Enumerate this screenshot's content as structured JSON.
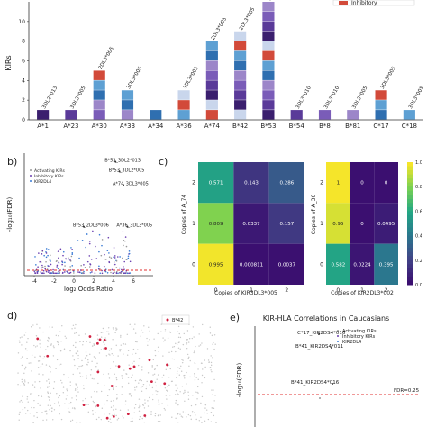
{
  "panel_labels": {
    "b": "b)",
    "c": "c)",
    "d": "d)",
    "e": "e)"
  },
  "chart_data": [
    {
      "id": "a",
      "type": "bar",
      "ylabel": "KIRs",
      "ylim": [
        0,
        12
      ],
      "yticks": [
        0,
        2,
        4,
        6,
        8,
        10
      ],
      "categories": [
        "A*1",
        "A*23",
        "A*30",
        "A*33",
        "A*34",
        "A*36",
        "A*74",
        "B*42",
        "B*53",
        "B*54",
        "B*8",
        "B*81",
        "C*17",
        "C*18"
      ],
      "values": [
        1,
        1,
        5,
        3,
        1,
        3,
        8,
        9,
        12,
        1,
        1,
        1,
        3,
        1
      ],
      "legend_text": "Inhibitory",
      "bar_labels": {
        "A*1": "3DL2*013",
        "A*23": "3DL3*005",
        "A*30": "2DL3*005",
        "A*33": "3DL3*005",
        "A*36": "3DL3*005",
        "A*74": "2DL3*005",
        "B*42": "2DL3*005",
        "B*53": "2DL3*005",
        "B*54": "3DL3*010",
        "B*8": "3DL3*010",
        "B*81": "3DL3*005",
        "C*17": "3DL3*005",
        "C*18": "3DL3*005"
      }
    },
    {
      "id": "b",
      "type": "scatter",
      "xlabel": "log₂ Odds Ratio",
      "ylabel": "-log₁₀(FDR)",
      "xlim": [
        -5,
        8
      ],
      "xticks": [
        -4,
        -2,
        0,
        2,
        4,
        6
      ],
      "legend": [
        "Activating KIRs",
        "Inhibitory KIRs",
        "KIR2DL4"
      ],
      "annotations": [
        {
          "text": "B*53_3DL2*013",
          "x": 4.2,
          "y": 0.93
        },
        {
          "text": "B*53_3DL2*005",
          "x": 4.6,
          "y": 0.85
        },
        {
          "text": "A*74_3DL3*005",
          "x": 5.0,
          "y": 0.74
        },
        {
          "text": "B*53_2DL3*006",
          "x": 1.0,
          "y": 0.4
        },
        {
          "text": "A*36_3DL3*005",
          "x": 5.4,
          "y": 0.4
        }
      ]
    },
    {
      "id": "c1",
      "type": "heatmap",
      "xlabel": "Copies of KIR3DL3*005",
      "ylabel": "Copies of A_74",
      "x": [
        "0",
        "1",
        "2"
      ],
      "y": [
        "2",
        "1",
        "0"
      ],
      "values": [
        [
          0.571,
          0.143,
          0.286
        ],
        [
          0.809,
          0.0337,
          0.157
        ],
        [
          0.995,
          0.000811,
          0.0037
        ]
      ]
    },
    {
      "id": "c2",
      "type": "heatmap",
      "xlabel": "Copies of KIR2DL3*002",
      "ylabel": "Copies of A_36",
      "x": [
        "0",
        "1",
        "2"
      ],
      "y": [
        "2",
        "1",
        "0"
      ],
      "values": [
        [
          1,
          0,
          0
        ],
        [
          0.95,
          0,
          0.0495
        ],
        [
          0.582,
          0.0224,
          0.395
        ]
      ],
      "colorbar_ticks": [
        "1.0",
        "0.8",
        "0.6",
        "0.4",
        "0.2",
        "0.0"
      ]
    },
    {
      "id": "d",
      "type": "scatter",
      "legend": [
        "B*42"
      ]
    },
    {
      "id": "e",
      "type": "scatter",
      "title": "KIR-HLA Correlations in Caucasians",
      "ylabel": "-log₁₀(FDR)",
      "legend": [
        "Activating KIRs",
        "Inhibitory KIRs",
        "KIR2DL4"
      ],
      "annotations": [
        "C*17_KIR2DS4*016",
        "B*41_KIR2DS4*011",
        "B*41_KIR2DS4*016"
      ],
      "threshold_label": "FDR=0.25"
    }
  ],
  "colors": {
    "bar_palette": [
      "#3b1f6e",
      "#5a3a99",
      "#7a5cb8",
      "#9c86c9",
      "#2f6fb0",
      "#5ea0d3",
      "#d24a3a",
      "#c9d6ec"
    ],
    "purple": "#6a3fb0",
    "threshold": "#e03030",
    "heat_low": "#3b0f70",
    "heat_high": "#f5e52a"
  }
}
